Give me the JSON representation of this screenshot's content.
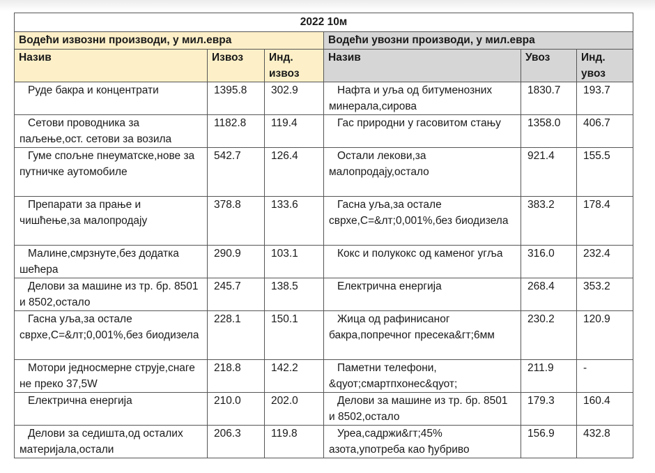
{
  "title": "2022 10м",
  "colors": {
    "export_header_bg": "#fdf0c8",
    "import_header_bg": "#d6d6d6",
    "border": "#555555"
  },
  "exports": {
    "section_title": "Водећи извозни производи, у мил.евра",
    "columns": [
      "Назив",
      "Извоз",
      "Инд. извоз"
    ],
    "rows": [
      {
        "name": "Руде бакра и концентрати",
        "value": "1395.8",
        "index": "302.9"
      },
      {
        "name": "Сетови проводника за паљење,ост. сетови за возила",
        "value": "1182.8",
        "index": "119.4"
      },
      {
        "name": "Гуме спољне пнеуматске,нове за путничке аутомобиле",
        "value": "542.7",
        "index": "126.4"
      },
      {
        "name": "Препарати за прање и чишћење,за малопродају",
        "value": "378.8",
        "index": "133.6"
      },
      {
        "name": "Малине,смрзнуте,без додатка шећера",
        "value": "290.9",
        "index": "103.1"
      },
      {
        "name": "Делови за машине из тр. бр. 8501 и 8502,остало",
        "value": "245.7",
        "index": "138.5"
      },
      {
        "name": "Гасна уља,за остале сврхе,С=&лт;0,001%,без биодизела",
        "value": "228.1",
        "index": "150.1"
      },
      {
        "name": "Мотори једносмерне струје,снаге не преко 37,5W",
        "value": "218.8",
        "index": "142.2"
      },
      {
        "name": "Електрична енергија",
        "value": "210.0",
        "index": "202.0"
      },
      {
        "name": "Делови за седишта,од осталих материјала,остали",
        "value": "206.3",
        "index": "119.8"
      }
    ]
  },
  "imports": {
    "section_title": "Водећи увозни производи, у мил.евра",
    "columns": [
      "Назив",
      "Увоз",
      "Инд. увоз"
    ],
    "rows": [
      {
        "name": "Нафта и уља од битуменозних минерала,сирова",
        "value": "1830.7",
        "index": "193.7"
      },
      {
        "name": "Гас природни у гасовитом стању",
        "value": "1358.0",
        "index": "406.7"
      },
      {
        "name": "Остали лекови,за малопродају,остало",
        "value": "921.4",
        "index": "155.5"
      },
      {
        "name": "Гасна уља,за остале сврхе,С=&лт;0,001%,без биодизела",
        "value": "383.2",
        "index": "178.4"
      },
      {
        "name": "Кокс и полукокс од каменог угља",
        "value": "316.0",
        "index": "232.4"
      },
      {
        "name": "Електрична енергија",
        "value": "268.4",
        "index": "353.2"
      },
      {
        "name": "Жица од рафинисаног бакра,попречног пресека&гт;6мм",
        "value": "230.2",
        "index": "120.9"
      },
      {
        "name": "Паметни телефони, &qуот;смартпхонес&qуот;",
        "value": "211.9",
        "index": "-"
      },
      {
        "name": "Делови за машине из тр. бр. 8501 и 8502,остало",
        "value": "179.3",
        "index": "160.4"
      },
      {
        "name": "Уреа,садржи&гт;45% азота,употреба као ђубриво",
        "value": "156.9",
        "index": "432.8"
      }
    ]
  }
}
